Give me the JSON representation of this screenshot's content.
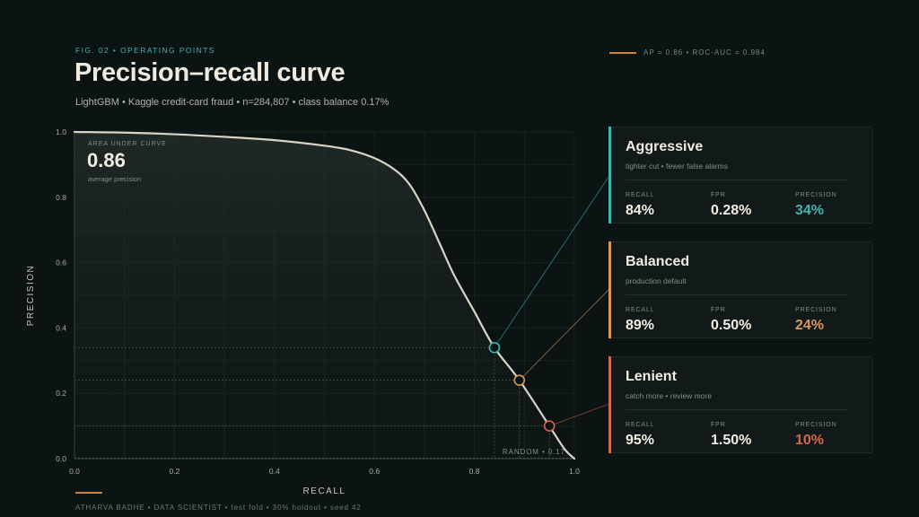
{
  "header": {
    "eyebrow": "FIG. 02 • OPERATING POINTS",
    "title": "Precision–recall curve",
    "subtitle": "LightGBM • Kaggle credit-card fraud • n=284,807 • class balance 0.17%",
    "legend_text": "AP = 0.86 • ROC-AUC = 0.984"
  },
  "inset": {
    "label": "AREA UNDER CURVE",
    "value": "0.86",
    "caption": "average precision"
  },
  "random_label": "RANDOM • 0.17",
  "colors": {
    "curve": "#d9d4c8",
    "aggressive": "#3fb5b0",
    "balanced": "#d9985a",
    "lenient": "#d4694a",
    "accent_line": "#c7834a"
  },
  "chart_data": {
    "type": "line",
    "title": "Precision–recall curve",
    "xlabel": "RECALL",
    "ylabel": "PRECISION",
    "xlim": [
      0,
      1
    ],
    "ylim": [
      0,
      1
    ],
    "xticks": [
      "0.0",
      "0.2",
      "0.4",
      "0.6",
      "0.8",
      "1.0"
    ],
    "yticks": [
      "0.0",
      "0.2",
      "0.4",
      "0.6",
      "0.8",
      "1.0"
    ],
    "grid": true,
    "baseline": 0.0017,
    "curve": {
      "x": [
        0,
        0.1,
        0.2,
        0.3,
        0.4,
        0.5,
        0.55,
        0.6,
        0.64,
        0.67,
        0.7,
        0.73,
        0.76,
        0.8,
        0.84,
        0.89,
        0.95,
        0.98,
        1.0
      ],
      "y": [
        1.0,
        0.998,
        0.993,
        0.985,
        0.975,
        0.958,
        0.945,
        0.92,
        0.885,
        0.84,
        0.76,
        0.66,
        0.56,
        0.45,
        0.34,
        0.24,
        0.1,
        0.03,
        0.0
      ]
    },
    "operating_points": [
      {
        "name": "Aggressive",
        "recall": 0.84,
        "precision": 0.34
      },
      {
        "name": "Balanced",
        "recall": 0.89,
        "precision": 0.24
      },
      {
        "name": "Lenient",
        "recall": 0.95,
        "precision": 0.1
      }
    ]
  },
  "cards": [
    {
      "name": "Aggressive",
      "desc": "tighter cut • fewer false alarms",
      "color": "#3fb5b0",
      "metrics": [
        {
          "label": "RECALL",
          "value": "84%"
        },
        {
          "label": "FPR",
          "value": "0.28%"
        },
        {
          "label": "PRECISION",
          "value": "34%"
        }
      ]
    },
    {
      "name": "Balanced",
      "desc": "production default",
      "color": "#d9985a",
      "metrics": [
        {
          "label": "RECALL",
          "value": "89%"
        },
        {
          "label": "FPR",
          "value": "0.50%"
        },
        {
          "label": "PRECISION",
          "value": "24%"
        }
      ]
    },
    {
      "name": "Lenient",
      "desc": "catch more • review more",
      "color": "#d4694a",
      "metrics": [
        {
          "label": "RECALL",
          "value": "95%"
        },
        {
          "label": "FPR",
          "value": "1.50%"
        },
        {
          "label": "PRECISION",
          "value": "10%"
        }
      ]
    }
  ],
  "footer": "ATHARVA BADHE • DATA SCIENTIST • test fold • 30% holdout • seed 42"
}
